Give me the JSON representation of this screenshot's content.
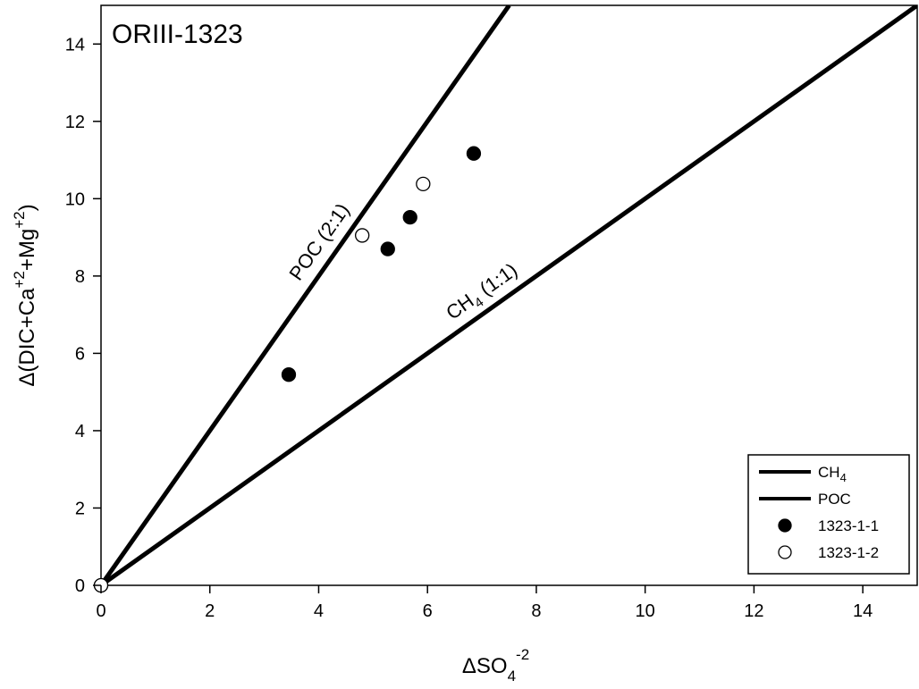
{
  "chart_data": {
    "type": "scatter",
    "title": "ORIII-1323",
    "xlabel": {
      "main": "ΔSO",
      "sub": "4",
      "sup": "-2"
    },
    "ylabel": {
      "parts": [
        {
          "t": "Δ(DIC+Ca",
          "k": "n"
        },
        {
          "t": "+2",
          "k": "sup"
        },
        {
          "t": "+Mg",
          "k": "n"
        },
        {
          "t": "+2",
          "k": "sup"
        },
        {
          "t": ")",
          "k": "n"
        }
      ]
    },
    "xlim": [
      0,
      15
    ],
    "ylim": [
      0,
      15
    ],
    "xticks": [
      0,
      2,
      4,
      6,
      8,
      10,
      12,
      14
    ],
    "yticks": [
      0,
      2,
      4,
      6,
      8,
      10,
      12,
      14
    ],
    "grid": false,
    "legend_position": "bottom-right",
    "lines": [
      {
        "name": "CH4",
        "slope": 1,
        "label": "CH4 (1:1)",
        "label_main": "CH",
        "label_sub": "4",
        "label_rest": " (1:1)",
        "label_at_x": 7.2
      },
      {
        "name": "POC",
        "slope": 2,
        "label": "POC (2:1)",
        "label_at_x": 4.3
      }
    ],
    "series": [
      {
        "name": "1323-1-1",
        "marker": "filled-circle",
        "x": [
          0,
          3.45,
          5.27,
          5.68,
          6.85
        ],
        "y": [
          0,
          5.45,
          8.7,
          9.52,
          11.17
        ]
      },
      {
        "name": "1323-1-2",
        "marker": "open-circle",
        "x": [
          0,
          4.8,
          5.92
        ],
        "y": [
          0,
          9.05,
          10.38
        ]
      }
    ],
    "legend": [
      {
        "key": "CH4",
        "main": "CH",
        "sub": "4",
        "type": "line"
      },
      {
        "key": "POC",
        "main": "POC",
        "sub": "",
        "type": "line"
      },
      {
        "key": "1323-1-1",
        "main": "1323-1-1",
        "sub": "",
        "type": "filled-circle"
      },
      {
        "key": "1323-1-2",
        "main": "1323-1-2",
        "sub": "",
        "type": "open-circle"
      }
    ]
  }
}
